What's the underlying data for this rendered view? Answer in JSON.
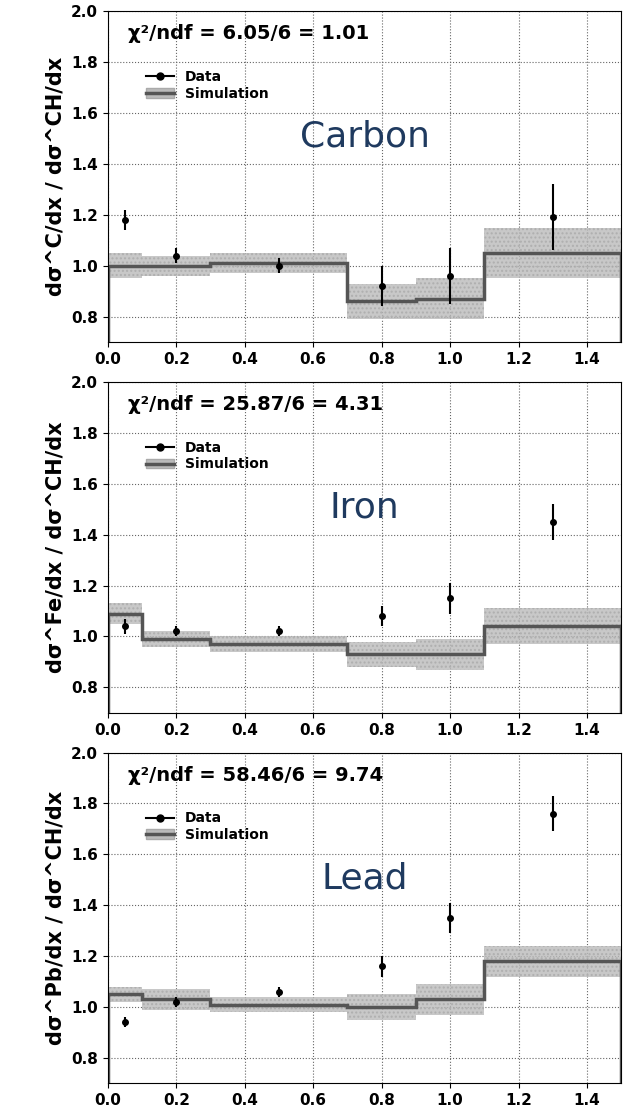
{
  "chart_data": [
    {
      "type": "step",
      "ylabel": "dσ^C/dx / dσ^CH/dx",
      "annotations": [
        "χ²/ndf = 6.05/6 = 1.01",
        "Carbon"
      ],
      "xlim": [
        0.0,
        1.5
      ],
      "xticks": [
        {
          "value": 0.0,
          "label": "0.0"
        },
        0.2,
        0.4,
        0.6,
        0.8,
        {
          "value": 1.0,
          "label": "1.0"
        },
        1.2,
        1.4
      ],
      "ylim": [
        0.7,
        2.0
      ],
      "yticks": [
        0.8,
        {
          "value": 1.0,
          "label": "1.0"
        },
        1.2,
        1.4,
        1.6,
        1.8,
        {
          "value": 2.0,
          "label": "2.0"
        }
      ],
      "grid": true,
      "legend": "upper left",
      "series": [
        {
          "name": "Data",
          "type": "scatter",
          "color": "#000000",
          "marker": "o",
          "x": [
            0.05,
            0.2,
            0.5,
            0.8,
            1.0,
            1.3
          ],
          "values": [
            1.18,
            1.04,
            1.0,
            0.92,
            0.96,
            1.19
          ],
          "errors": [
            0.04,
            0.03,
            0.03,
            0.08,
            0.11,
            0.13
          ]
        },
        {
          "name": "Simulation",
          "type": "step",
          "color": "#555555",
          "bins": [
            0.0,
            0.1,
            0.3,
            0.7,
            0.9,
            1.1,
            1.5
          ],
          "values": [
            1.0,
            1.0,
            1.01,
            0.86,
            0.87,
            1.05
          ],
          "errors": [
            0.05,
            0.04,
            0.04,
            0.07,
            0.08,
            0.1
          ]
        }
      ]
    },
    {
      "type": "step",
      "ylabel": "dσ^Fe/dx / dσ^CH/dx",
      "annotations": [
        "χ²/ndf = 25.87/6 = 4.31",
        "Iron"
      ],
      "xlim": [
        0.0,
        1.5
      ],
      "xticks": [
        {
          "value": 0.0,
          "label": "0.0"
        },
        0.2,
        0.4,
        0.6,
        0.8,
        {
          "value": 1.0,
          "label": "1.0"
        },
        1.2,
        1.4
      ],
      "ylim": [
        0.7,
        2.0
      ],
      "yticks": [
        0.8,
        {
          "value": 1.0,
          "label": "1.0"
        },
        1.2,
        1.4,
        1.6,
        1.8,
        {
          "value": 2.0,
          "label": "2.0"
        }
      ],
      "grid": true,
      "legend": "upper left",
      "series": [
        {
          "name": "Data",
          "type": "scatter",
          "color": "#000000",
          "marker": "o",
          "x": [
            0.05,
            0.2,
            0.5,
            0.8,
            1.0,
            1.3
          ],
          "values": [
            1.04,
            1.02,
            1.02,
            1.08,
            1.15,
            1.45
          ],
          "errors": [
            0.03,
            0.02,
            0.02,
            0.04,
            0.06,
            0.07
          ]
        },
        {
          "name": "Simulation",
          "type": "step",
          "color": "#555555",
          "bins": [
            0.0,
            0.1,
            0.3,
            0.7,
            0.9,
            1.1,
            1.5
          ],
          "values": [
            1.09,
            0.99,
            0.97,
            0.93,
            0.93,
            1.04
          ],
          "errors": [
            0.04,
            0.03,
            0.03,
            0.05,
            0.06,
            0.07
          ]
        }
      ]
    },
    {
      "type": "step",
      "ylabel": "dσ^Pb/dx / dσ^CH/dx",
      "annotations": [
        "χ²/ndf = 58.46/6 = 9.74",
        "Lead"
      ],
      "xlim": [
        0.0,
        1.5
      ],
      "xticks": [
        {
          "value": 0.0,
          "label": "0.0"
        },
        0.2,
        0.4,
        0.6,
        0.8,
        {
          "value": 1.0,
          "label": "1.0"
        },
        1.2,
        1.4
      ],
      "ylim": [
        0.7,
        2.0
      ],
      "yticks": [
        0.8,
        {
          "value": 1.0,
          "label": "1.0"
        },
        1.2,
        1.4,
        1.6,
        1.8,
        {
          "value": 2.0,
          "label": "2.0"
        }
      ],
      "grid": true,
      "legend": "upper left",
      "series": [
        {
          "name": "Data",
          "type": "scatter",
          "color": "#000000",
          "marker": "o",
          "x": [
            0.05,
            0.2,
            0.5,
            0.8,
            1.0,
            1.3
          ],
          "values": [
            0.94,
            1.02,
            1.06,
            1.16,
            1.35,
            1.76
          ],
          "errors": [
            0.02,
            0.02,
            0.02,
            0.04,
            0.06,
            0.07
          ]
        },
        {
          "name": "Simulation",
          "type": "step",
          "color": "#555555",
          "bins": [
            0.0,
            0.1,
            0.3,
            0.7,
            0.9,
            1.1,
            1.5
          ],
          "values": [
            1.05,
            1.03,
            1.01,
            1.0,
            1.03,
            1.18
          ],
          "errors": [
            0.03,
            0.04,
            0.03,
            0.05,
            0.06,
            0.06
          ]
        }
      ]
    }
  ]
}
